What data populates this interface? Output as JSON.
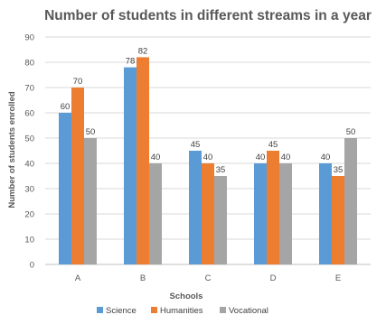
{
  "chart_data": {
    "type": "bar",
    "title": "Number of students in different streams in a year",
    "xlabel": "Schools",
    "ylabel": "Number of students enrolled",
    "categories": [
      "A",
      "B",
      "C",
      "D",
      "E"
    ],
    "ylim": [
      0,
      90
    ],
    "yticks": [
      0,
      10,
      20,
      30,
      40,
      50,
      60,
      70,
      80,
      90
    ],
    "grid": true,
    "legend_position": "bottom",
    "series": [
      {
        "name": "Science",
        "color": "#5b9bd5",
        "values": [
          60,
          78,
          45,
          40,
          40
        ]
      },
      {
        "name": "Humanities",
        "color": "#ed7d31",
        "values": [
          70,
          82,
          40,
          45,
          35
        ]
      },
      {
        "name": "Vocational",
        "color": "#a5a5a5",
        "values": [
          50,
          40,
          35,
          40,
          50
        ]
      }
    ]
  }
}
